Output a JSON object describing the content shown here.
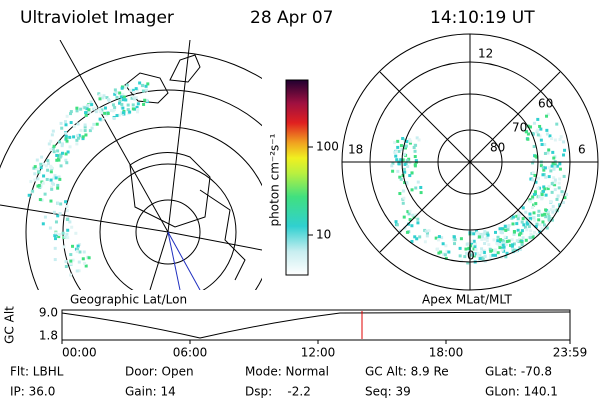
{
  "header": {
    "title": "Ultraviolet Imager",
    "date": "28 Apr 07",
    "time": "14:10:19 UT"
  },
  "left_panel": {
    "label": "Geographic Lat/Lon"
  },
  "right_panel": {
    "label": "Apex MLat/MLT",
    "mlt_labels": [
      "12",
      "18",
      "6",
      "0"
    ],
    "mlat_labels": [
      "60",
      "70",
      "80"
    ]
  },
  "colorbar": {
    "label": "photon cm⁻²s⁻¹",
    "ticks": [
      "100",
      "10"
    ]
  },
  "altitude_plot": {
    "ylabel": "GC Alt",
    "yticks": [
      "9.0",
      "1.8"
    ],
    "xticks": [
      "00:00",
      "06:00",
      "12:00",
      "18:00",
      "23:59"
    ]
  },
  "status": {
    "rows": [
      [
        "Flt: LBHL",
        "Door: Open",
        "Mode: Normal",
        "GC Alt: 8.9 Re",
        "GLat: -70.8"
      ],
      [
        "IP: 36.0",
        "Gain: 14",
        "Dsp:    -2.2",
        "Seq: 39",
        "GLon: 140.1"
      ]
    ]
  }
}
